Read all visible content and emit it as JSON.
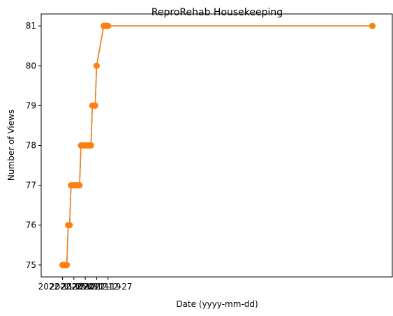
{
  "chart_data": {
    "type": "line",
    "title": "ReproRehab Housekeeping",
    "xlabel": "Date (yyyy-mm-dd)",
    "ylabel": "Number of Views",
    "grid": false,
    "legend": "none",
    "ylim": [
      74.7,
      81.3
    ],
    "yticks": [
      75,
      76,
      77,
      78,
      79,
      80,
      81
    ],
    "xlim": [
      "2022-11-10",
      "2023-07-15"
    ],
    "xticks": [
      {
        "date": "2022-11-25",
        "label": "2022-11-25"
      },
      {
        "date": "2022-12-03",
        "label": "2022-12-03"
      },
      {
        "date": "2022-12-11",
        "label": "2022-12-11"
      },
      {
        "date": "2022-12-19",
        "label": "2022-12-19"
      },
      {
        "date": "2022-12-27",
        "label": "2022-12-27"
      }
    ],
    "colors": {
      "line_under": "#1f77b4",
      "line": "#ff7f0e"
    },
    "series": [
      {
        "x": [
          "2022-11-25",
          "2022-11-26",
          "2022-11-27",
          "2022-11-28",
          "2022-11-29",
          "2022-11-30",
          "2022-12-01",
          "2022-12-02",
          "2022-12-03",
          "2022-12-04",
          "2022-12-05",
          "2022-12-06",
          "2022-12-07",
          "2022-12-08",
          "2022-12-09",
          "2022-12-10",
          "2022-12-11",
          "2022-12-12",
          "2022-12-13",
          "2022-12-14",
          "2022-12-15",
          "2022-12-16",
          "2022-12-17",
          "2022-12-18",
          "2022-12-19",
          "2022-12-24",
          "2022-12-25",
          "2022-12-26",
          "2022-12-27",
          "2023-07-01"
        ],
        "values": [
          75,
          75,
          75,
          75,
          76,
          76,
          77,
          77,
          77,
          77,
          77,
          77,
          77,
          78,
          78,
          78,
          78,
          78,
          78,
          78,
          78,
          79,
          79,
          79,
          80,
          81,
          81,
          81,
          81,
          81
        ]
      }
    ]
  }
}
